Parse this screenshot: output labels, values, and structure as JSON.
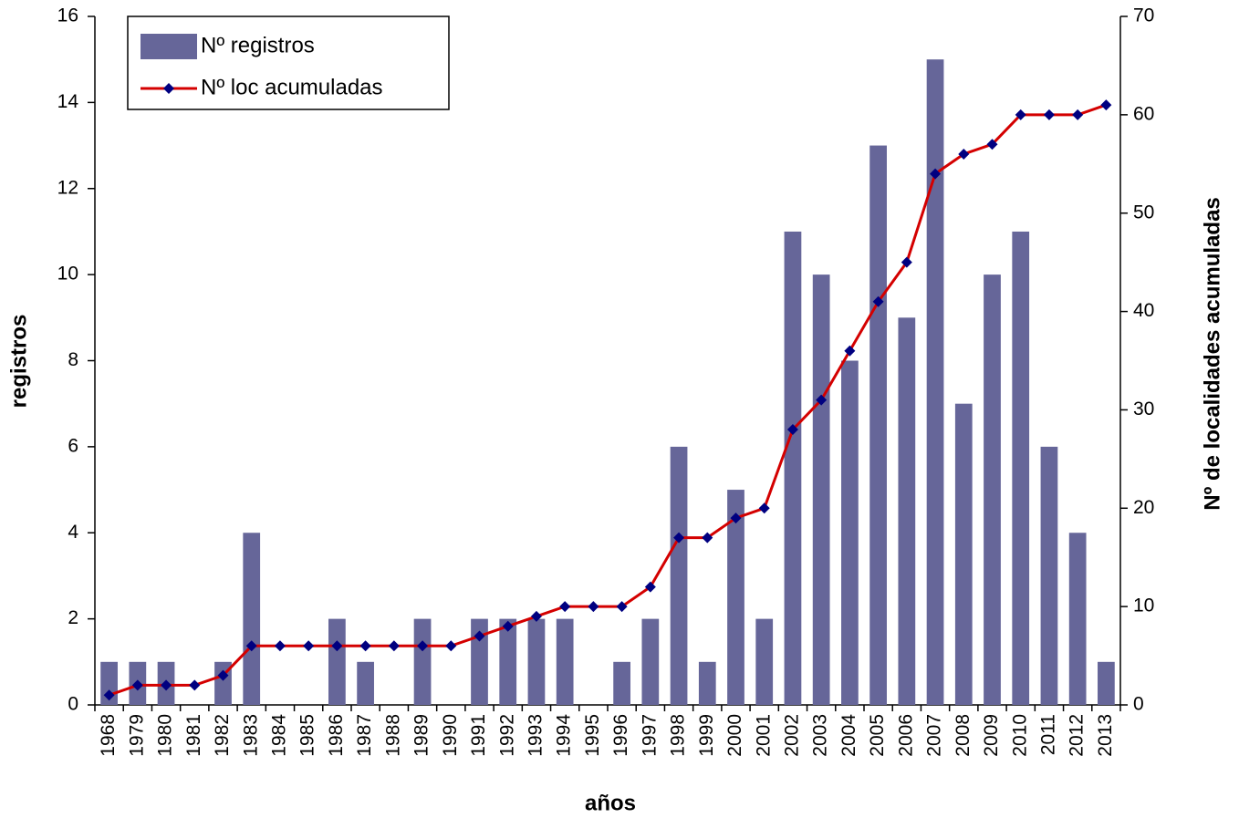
{
  "chart_data": {
    "type": "bar",
    "x_label": "años",
    "y_label": "registros",
    "y2_label": "Nº de localidades acumuladas",
    "categories": [
      "1968",
      "1979",
      "1980",
      "1981",
      "1982",
      "1983",
      "1984",
      "1985",
      "1986",
      "1987",
      "1988",
      "1989",
      "1990",
      "1991",
      "1992",
      "1993",
      "1994",
      "1995",
      "1996",
      "1997",
      "1998",
      "1999",
      "2000",
      "2001",
      "2002",
      "2003",
      "2004",
      "2005",
      "2006",
      "2007",
      "2008",
      "2009",
      "2010",
      "2011",
      "2012",
      "2013"
    ],
    "series": [
      {
        "name": "Nº registros",
        "type": "bar",
        "color": "#666699",
        "values": [
          1,
          1,
          1,
          0,
          1,
          4,
          0,
          0,
          2,
          1,
          0,
          2,
          0,
          2,
          2,
          2,
          2,
          0,
          1,
          2,
          6,
          1,
          5,
          2,
          11,
          10,
          8,
          13,
          9,
          15,
          7,
          10,
          11,
          6,
          4,
          1
        ]
      },
      {
        "name": "Nº loc acumuladas",
        "type": "line",
        "axis": "y2",
        "color": "#d40000",
        "marker_color": "#000080",
        "values": [
          1,
          2,
          2,
          2,
          3,
          6,
          6,
          6,
          6,
          6,
          6,
          6,
          6,
          7,
          8,
          9,
          10,
          10,
          10,
          12,
          17,
          17,
          19,
          20,
          28,
          31,
          36,
          41,
          45,
          54,
          56,
          57,
          60,
          60,
          60,
          61
        ]
      }
    ],
    "ylim": [
      0,
      16
    ],
    "yticks": [
      0,
      2,
      4,
      6,
      8,
      10,
      12,
      14,
      16
    ],
    "y2lim": [
      0,
      70
    ],
    "y2ticks": [
      0,
      10,
      20,
      30,
      40,
      50,
      60,
      70
    ],
    "legend": "upper-left"
  }
}
